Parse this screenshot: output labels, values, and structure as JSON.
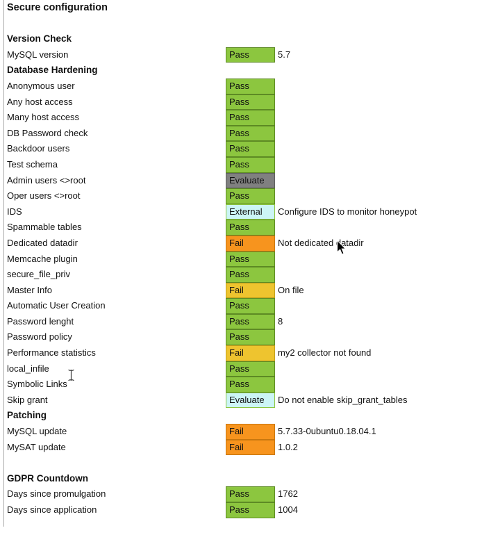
{
  "page": {
    "title": "Secure configuration"
  },
  "colors": {
    "pass": {
      "bg": "#8cc63f",
      "border": "#5d8a24"
    },
    "fail_orange": {
      "bg": "#f7941e",
      "border": "#c9770f"
    },
    "fail_yellow": {
      "bg": "#eec42f",
      "border": "#c2a01c"
    },
    "evaluate_gray": {
      "bg": "#808080",
      "border": "#5f5f5f"
    },
    "evaluate_cyan": {
      "bg": "#ccf5f6",
      "border": "#8cc63f"
    },
    "external_cyan": {
      "bg": "#ccf5f6",
      "border": "#8cc63f"
    }
  },
  "report": {
    "rows": [
      {
        "type": "title",
        "label": "Secure configuration"
      },
      {
        "type": "spacer"
      },
      {
        "type": "section",
        "label": "Version Check"
      },
      {
        "type": "check",
        "label": "MySQL version",
        "status": "Pass",
        "variant": "pass",
        "value": "5.7"
      },
      {
        "type": "section",
        "label": "Database Hardening"
      },
      {
        "type": "check",
        "label": "Anonymous user",
        "status": "Pass",
        "variant": "pass",
        "value": ""
      },
      {
        "type": "check",
        "label": "Any host access",
        "status": "Pass",
        "variant": "pass",
        "value": ""
      },
      {
        "type": "check",
        "label": "Many host access",
        "status": "Pass",
        "variant": "pass",
        "value": ""
      },
      {
        "type": "check",
        "label": "DB Password check",
        "status": "Pass",
        "variant": "pass",
        "value": ""
      },
      {
        "type": "check",
        "label": "Backdoor users",
        "status": "Pass",
        "variant": "pass",
        "value": ""
      },
      {
        "type": "check",
        "label": "Test schema",
        "status": "Pass",
        "variant": "pass",
        "value": ""
      },
      {
        "type": "check",
        "label": "Admin users <>root",
        "status": "Evaluate",
        "variant": "evaluate_gray",
        "value": ""
      },
      {
        "type": "check",
        "label": "Oper users <>root",
        "status": "Pass",
        "variant": "pass",
        "value": ""
      },
      {
        "type": "check",
        "label": "IDS",
        "status": "External",
        "variant": "external_cyan",
        "value": "Configure IDS to monitor honeypot"
      },
      {
        "type": "check",
        "label": "Spammable tables",
        "status": "Pass",
        "variant": "pass",
        "value": ""
      },
      {
        "type": "check",
        "label": "Dedicated datadir",
        "status": "Fail",
        "variant": "fail_orange",
        "value": "Not dedicated datadir"
      },
      {
        "type": "check",
        "label": "Memcache plugin",
        "status": "Pass",
        "variant": "pass",
        "value": ""
      },
      {
        "type": "check",
        "label": "secure_file_priv",
        "status": "Pass",
        "variant": "pass",
        "value": ""
      },
      {
        "type": "check",
        "label": "Master Info",
        "status": "Fail",
        "variant": "fail_yellow",
        "value": "On file"
      },
      {
        "type": "check",
        "label": "Automatic User Creation",
        "status": "Pass",
        "variant": "pass",
        "value": ""
      },
      {
        "type": "check",
        "label": "Password lenght",
        "status": "Pass",
        "variant": "pass",
        "value": "8"
      },
      {
        "type": "check",
        "label": "Password policy",
        "status": "Pass",
        "variant": "pass",
        "value": ""
      },
      {
        "type": "check",
        "label": "Performance statistics",
        "status": "Fail",
        "variant": "fail_yellow",
        "value": "my2 collector not found"
      },
      {
        "type": "check",
        "label": "local_infile",
        "status": "Pass",
        "variant": "pass",
        "value": ""
      },
      {
        "type": "check",
        "label": "Symbolic Links",
        "status": "Pass",
        "variant": "pass",
        "value": ""
      },
      {
        "type": "check",
        "label": "Skip grant",
        "status": "Evaluate",
        "variant": "evaluate_cyan",
        "value": "Do not enable skip_grant_tables"
      },
      {
        "type": "section",
        "label": "Patching"
      },
      {
        "type": "check",
        "label": "MySQL update",
        "status": "Fail",
        "variant": "fail_orange",
        "value": "5.7.33-0ubuntu0.18.04.1"
      },
      {
        "type": "check",
        "label": "MySAT update",
        "status": "Fail",
        "variant": "fail_orange",
        "value": "1.0.2"
      },
      {
        "type": "spacer"
      },
      {
        "type": "section",
        "label": "GDPR Countdown"
      },
      {
        "type": "check",
        "label": "Days since promulgation",
        "status": "Pass",
        "variant": "pass",
        "value": "1762"
      },
      {
        "type": "check",
        "label": "Days since application",
        "status": "Pass",
        "variant": "pass",
        "value": "1004"
      }
    ]
  }
}
